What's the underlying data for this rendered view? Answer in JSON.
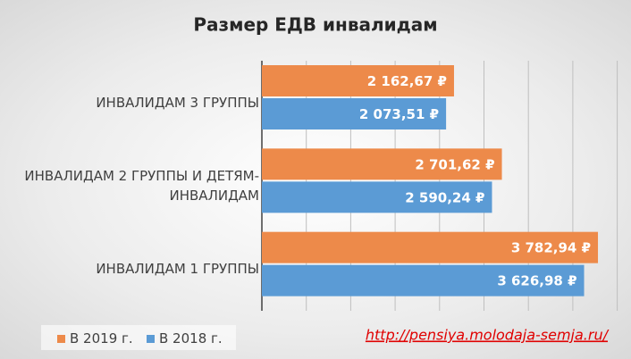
{
  "chart_data": {
    "type": "hbar",
    "title": "Размер ЕДВ инвалидам",
    "categories": [
      "ИНВАЛИДАМ 3 ГРУППЫ",
      "ИНВАЛИДАМ 2 ГРУППЫ И ДЕТЯМ-ИНВАЛИДАМ",
      "ИНВАЛИДАМ 1 ГРУППЫ"
    ],
    "series": [
      {
        "name": "В 2019 г.",
        "color": "#ed8a4a",
        "values": [
          2162.67,
          2701.62,
          3782.94
        ],
        "value_labels": [
          "2 162,67 ₽",
          "2 701,62 ₽",
          "3 782,94 ₽"
        ]
      },
      {
        "name": "В 2018 г.",
        "color": "#5b9bd5",
        "values": [
          2073.51,
          2590.24,
          3626.98
        ],
        "value_labels": [
          "2 073,51 ₽",
          "2 590,24 ₽",
          "3 626,98 ₽"
        ]
      }
    ],
    "xlim": [
      0,
      4000
    ],
    "xticks": [
      0,
      500,
      1000,
      1500,
      2000,
      2500,
      3000,
      3500,
      4000
    ],
    "tick_labels": false,
    "grid": true,
    "source": "http://pensiya.molodaja-semja.ru/"
  }
}
